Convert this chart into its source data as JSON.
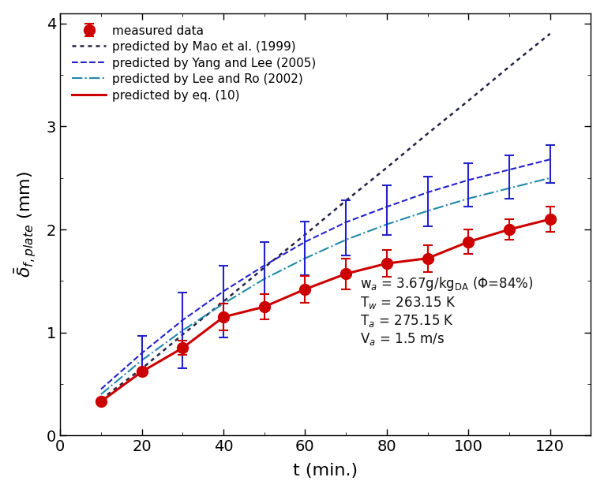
{
  "measured_t": [
    10,
    20,
    30,
    40,
    50,
    60,
    70,
    80,
    90,
    100,
    110,
    120
  ],
  "measured_y": [
    0.33,
    0.62,
    0.85,
    1.15,
    1.25,
    1.42,
    1.57,
    1.67,
    1.72,
    1.88,
    2.0,
    2.1
  ],
  "measured_yerr": [
    0.0,
    0.0,
    0.07,
    0.13,
    0.12,
    0.13,
    0.15,
    0.13,
    0.13,
    0.12,
    0.1,
    0.12
  ],
  "measured_color": "#cc0000",
  "lit_err_t": [
    20,
    30,
    40,
    50,
    60,
    70,
    80,
    90,
    100,
    110,
    120
  ],
  "lit_err_y": [
    0.62,
    1.07,
    1.38,
    1.65,
    1.98,
    2.2,
    2.35,
    2.43,
    2.57,
    2.65,
    2.75
  ],
  "lit_err_minus": [
    0.0,
    0.42,
    0.43,
    0.42,
    0.42,
    0.45,
    0.4,
    0.4,
    0.35,
    0.35,
    0.3
  ],
  "lit_err_plus": [
    0.35,
    0.32,
    0.27,
    0.23,
    0.1,
    0.08,
    0.08,
    0.08,
    0.07,
    0.07,
    0.07
  ],
  "lit_err_color": "#2222cc",
  "predicted_eq10_t": [
    10,
    20,
    30,
    40,
    50,
    60,
    70,
    80,
    90,
    100,
    110,
    120
  ],
  "predicted_eq10_y": [
    0.33,
    0.62,
    0.85,
    1.15,
    1.25,
    1.42,
    1.57,
    1.67,
    1.72,
    1.88,
    2.0,
    2.1
  ],
  "predicted_eq10_color": "#cc0000",
  "mao_t": [
    10,
    20,
    30,
    40,
    50,
    60,
    70,
    80,
    90,
    100,
    110,
    120
  ],
  "mao_y": [
    0.35,
    0.65,
    0.98,
    1.3,
    1.63,
    1.95,
    2.28,
    2.6,
    2.93,
    3.25,
    3.58,
    3.9
  ],
  "mao_color": "#222244",
  "yang_t": [
    10,
    20,
    30,
    40,
    50,
    60,
    70,
    80,
    90,
    100,
    110,
    120
  ],
  "yang_y": [
    0.45,
    0.8,
    1.12,
    1.4,
    1.65,
    1.88,
    2.07,
    2.22,
    2.36,
    2.48,
    2.58,
    2.68
  ],
  "yang_color": "#2222cc",
  "lee_t": [
    10,
    20,
    30,
    40,
    50,
    60,
    70,
    80,
    90,
    100,
    110,
    120
  ],
  "lee_y": [
    0.4,
    0.73,
    1.02,
    1.28,
    1.52,
    1.72,
    1.9,
    2.05,
    2.18,
    2.3,
    2.4,
    2.5
  ],
  "lee_color": "#2288aa",
  "xlim": [
    0,
    130
  ],
  "ylim": [
    0,
    4.1
  ],
  "xticks": [
    0,
    20,
    40,
    60,
    80,
    100,
    120
  ],
  "yticks": [
    0,
    1,
    2,
    3,
    4
  ],
  "xlabel": "t (min.)",
  "annotation_color": "#111111"
}
